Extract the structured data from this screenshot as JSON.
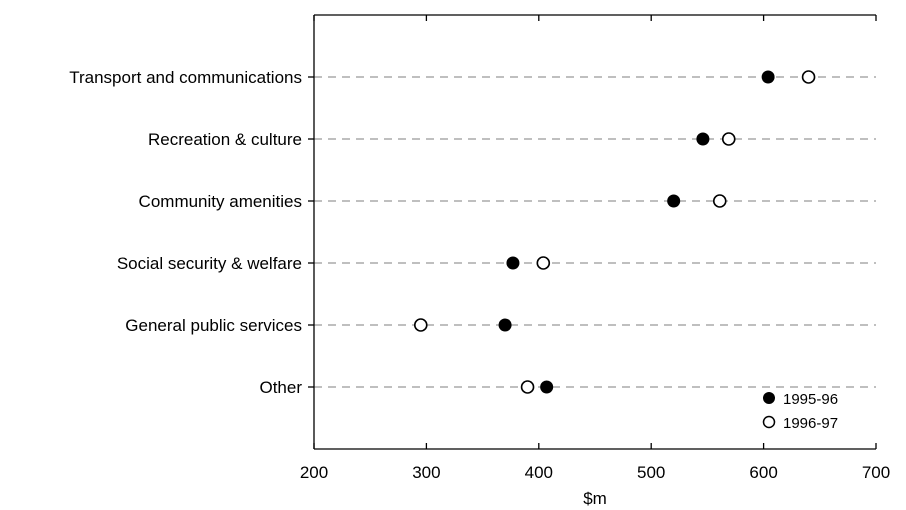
{
  "chart_data": {
    "type": "scatter",
    "title": "",
    "xlabel": "$m",
    "ylabel": "",
    "xlim": [
      200,
      700
    ],
    "xticks": [
      "200",
      "300",
      "400",
      "500",
      "600",
      "700"
    ],
    "categories": [
      "Transport and communications",
      "Recreation & culture",
      "Community amenities",
      "Social security & welfare",
      "General public services",
      "Other"
    ],
    "series": [
      {
        "name": "1995-96",
        "marker": "filled-circle",
        "values": [
          604,
          546,
          520,
          377,
          370,
          407
        ]
      },
      {
        "name": "1996-97",
        "marker": "open-circle",
        "values": [
          640,
          569,
          561,
          404,
          295,
          390
        ]
      }
    ],
    "grid": "dashed horizontal lines per category",
    "legend_position": "bottom-right"
  },
  "colors": {
    "marker": "#000000",
    "gridline": "#999999",
    "axis": "#000000"
  }
}
